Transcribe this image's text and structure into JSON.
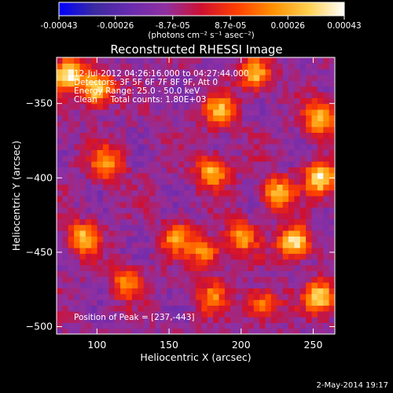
{
  "chart_data": {
    "type": "heatmap",
    "title": "Reconstructed RHESSI Image",
    "xlabel": "Heliocentric X (arcsec)",
    "ylabel": "Heliocentric Y (arcsec)",
    "xlim": [
      72,
      265
    ],
    "ylim": [
      -505,
      -319
    ],
    "xticks": [
      100,
      150,
      200,
      250
    ],
    "yticks": [
      -350,
      -400,
      -450,
      -500
    ],
    "colorbar": {
      "min": -0.00043,
      "max": 0.00043,
      "ticks": [
        -0.00043,
        -0.00026,
        -8.7e-05,
        8.7e-05,
        0.00026,
        0.00043
      ],
      "tick_labels": [
        "-0.00043",
        "-0.00026",
        "-8.7e-05",
        "8.7e-05",
        "0.00026",
        "0.00043"
      ],
      "unit_label": "(photons cm⁻² s⁻¹ asec⁻²)",
      "colors": [
        "#0000ff",
        "#3b2aa0",
        "#6a2bb0",
        "#9030a0",
        "#d01030",
        "#ff4000",
        "#ff9000",
        "#ffd050",
        "#ffffff"
      ]
    },
    "annotations": [
      "12-Jul-2012 04:26:16.000 to 04:27:44.000",
      "Detectors: 3F 5F 6F 7F 8F 9F, Att 0",
      "Energy Range: 25.0 - 50.0 keV",
      "Clean     Total counts: 1.80E+03"
    ],
    "peak_label": "Position of Peak = [237,-443]",
    "peak_position": [
      237,
      -443
    ],
    "bright_features": [
      {
        "x": 100,
        "y": -340,
        "value": 0.0004
      },
      {
        "x": 107,
        "y": -390,
        "value": 0.00024
      },
      {
        "x": 90,
        "y": -440,
        "value": 0.00028
      },
      {
        "x": 180,
        "y": -395,
        "value": 0.0003
      },
      {
        "x": 185,
        "y": -355,
        "value": 0.00028
      },
      {
        "x": 210,
        "y": -330,
        "value": 0.0003
      },
      {
        "x": 225,
        "y": -410,
        "value": 0.0003
      },
      {
        "x": 237,
        "y": -443,
        "value": 0.00043
      },
      {
        "x": 255,
        "y": -400,
        "value": 0.0004
      },
      {
        "x": 255,
        "y": -360,
        "value": 0.0003
      },
      {
        "x": 155,
        "y": -440,
        "value": 0.0002
      },
      {
        "x": 175,
        "y": -450,
        "value": 0.00024
      },
      {
        "x": 200,
        "y": -440,
        "value": 0.00024
      },
      {
        "x": 255,
        "y": -480,
        "value": 0.00035
      },
      {
        "x": 215,
        "y": -485,
        "value": 0.0002
      },
      {
        "x": 180,
        "y": -480,
        "value": 0.00016
      },
      {
        "x": 120,
        "y": -470,
        "value": 0.0002
      },
      {
        "x": 80,
        "y": -330,
        "value": 0.0004
      }
    ]
  },
  "footer": {
    "date": "2-May-2014 19:17"
  }
}
